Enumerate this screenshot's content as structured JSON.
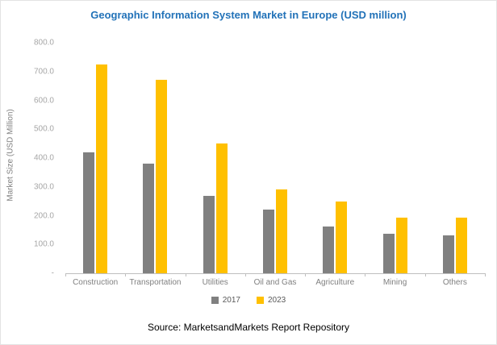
{
  "source": "Source: MarketsandMarkets Report Repository",
  "colors": {
    "title": "#2272B8",
    "axis_line": "#BFBFBF",
    "tick_text": "#A6A6A6",
    "label_text": "#808080",
    "legend_text": "#595959"
  },
  "chart_data": {
    "type": "bar",
    "title": "Geographic Information System Market in Europe (USD million)",
    "xlabel": "",
    "ylabel": "Market Size (USD Million)",
    "ylim": [
      0,
      800
    ],
    "ytick_step": 100,
    "yticks": [
      "800.0",
      "700.0",
      "600.0",
      "500.0",
      "400.0",
      "300.0",
      "200.0",
      "100.0",
      "-"
    ],
    "grid": false,
    "legend_position": "bottom",
    "categories": [
      "Construction",
      "Transportation",
      "Utilities",
      "Oil and Gas",
      "Agriculture",
      "Mining",
      "Others"
    ],
    "series": [
      {
        "name": "2017",
        "color": "#808080",
        "values": [
          420,
          380,
          268,
          222,
          162,
          138,
          132
        ]
      },
      {
        "name": "2023",
        "color": "#FFC000",
        "values": [
          725,
          672,
          450,
          290,
          250,
          193,
          192
        ]
      }
    ]
  }
}
